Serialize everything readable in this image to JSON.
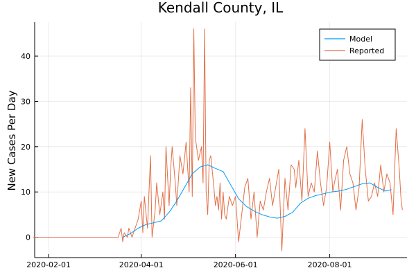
{
  "chart_data": {
    "type": "line",
    "title": "Kendall County, IL",
    "xlabel": "",
    "ylabel": "New Cases Per Day",
    "x_axis_type": "date",
    "xlim": [
      "2020-01-23",
      "2020-09-20"
    ],
    "ylim": [
      -4.5,
      47.5
    ],
    "x_ticks": [
      "2020-02-01",
      "2020-04-01",
      "2020-06-01",
      "2020-08-01"
    ],
    "y_ticks": [
      0,
      10,
      20,
      30,
      40
    ],
    "grid": true,
    "legend_position": "top-right",
    "series": [
      {
        "name": "Model",
        "color": "#009AFA",
        "x": [
          "2020-03-20",
          "2020-03-25",
          "2020-03-30",
          "2020-04-04",
          "2020-04-09",
          "2020-04-14",
          "2020-04-19",
          "2020-04-24",
          "2020-04-29",
          "2020-05-04",
          "2020-05-09",
          "2020-05-14",
          "2020-05-19",
          "2020-05-24",
          "2020-05-29",
          "2020-06-03",
          "2020-06-08",
          "2020-06-13",
          "2020-06-18",
          "2020-06-23",
          "2020-06-28",
          "2020-07-03",
          "2020-07-08",
          "2020-07-13",
          "2020-07-18",
          "2020-07-23",
          "2020-07-28",
          "2020-08-02",
          "2020-08-07",
          "2020-08-12",
          "2020-08-17",
          "2020-08-22",
          "2020-08-27",
          "2020-09-01",
          "2020-09-06",
          "2020-09-10"
        ],
        "y": [
          0,
          0.8,
          2.0,
          2.8,
          3.2,
          3.6,
          5.5,
          8.0,
          11,
          14,
          15.5,
          16.0,
          15.2,
          14.5,
          11.5,
          8.5,
          6.8,
          5.8,
          5.0,
          4.5,
          4.2,
          4.6,
          5.5,
          7.5,
          8.6,
          9.2,
          9.6,
          10.0,
          10.2,
          10.6,
          11.2,
          11.8,
          12.0,
          11.0,
          10.2,
          10.5
        ]
      },
      {
        "name": "Reported",
        "color": "#E26F46",
        "x": [
          "2020-01-22",
          "2020-03-17",
          "2020-03-19",
          "2020-03-20",
          "2020-03-21",
          "2020-03-23",
          "2020-03-24",
          "2020-03-26",
          "2020-03-27",
          "2020-03-29",
          "2020-03-30",
          "2020-04-01",
          "2020-04-02",
          "2020-04-03",
          "2020-04-05",
          "2020-04-06",
          "2020-04-07",
          "2020-04-08",
          "2020-04-10",
          "2020-04-11",
          "2020-04-13",
          "2020-04-15",
          "2020-04-16",
          "2020-04-17",
          "2020-04-19",
          "2020-04-20",
          "2020-04-21",
          "2020-04-23",
          "2020-04-24",
          "2020-04-26",
          "2020-04-28",
          "2020-04-30",
          "2020-05-02",
          "2020-05-03",
          "2020-05-04",
          "2020-05-05",
          "2020-05-06",
          "2020-05-08",
          "2020-05-10",
          "2020-05-11",
          "2020-05-12",
          "2020-05-13",
          "2020-05-14",
          "2020-05-15",
          "2020-05-16",
          "2020-05-18",
          "2020-05-19",
          "2020-05-20",
          "2020-05-21",
          "2020-05-22",
          "2020-05-23",
          "2020-05-24",
          "2020-05-25",
          "2020-05-26",
          "2020-05-28",
          "2020-05-30",
          "2020-06-01",
          "2020-06-03",
          "2020-06-05",
          "2020-06-07",
          "2020-06-09",
          "2020-06-11",
          "2020-06-13",
          "2020-06-15",
          "2020-06-17",
          "2020-06-19",
          "2020-06-21",
          "2020-06-23",
          "2020-06-25",
          "2020-06-27",
          "2020-06-29",
          "2020-07-01",
          "2020-07-03",
          "2020-07-05",
          "2020-07-07",
          "2020-07-09",
          "2020-07-10",
          "2020-07-12",
          "2020-07-14",
          "2020-07-16",
          "2020-07-18",
          "2020-07-20",
          "2020-07-22",
          "2020-07-24",
          "2020-07-26",
          "2020-07-28",
          "2020-07-30",
          "2020-08-01",
          "2020-08-03",
          "2020-08-04",
          "2020-08-06",
          "2020-08-08",
          "2020-08-10",
          "2020-08-12",
          "2020-08-14",
          "2020-08-16",
          "2020-08-18",
          "2020-08-20",
          "2020-08-22",
          "2020-08-24",
          "2020-08-26",
          "2020-08-28",
          "2020-08-30",
          "2020-09-01",
          "2020-09-03",
          "2020-09-05",
          "2020-09-07",
          "2020-09-09",
          "2020-09-11",
          "2020-09-13",
          "2020-09-15",
          "2020-09-16",
          "2020-09-17"
        ],
        "y": [
          0,
          0,
          2,
          -1,
          1,
          0,
          2,
          0,
          1,
          3,
          4,
          8,
          1,
          9,
          2,
          10,
          18,
          0,
          6,
          12,
          5,
          10,
          4,
          20,
          7,
          15,
          20,
          12,
          7,
          18,
          14,
          21,
          10,
          33,
          9,
          46,
          22,
          17,
          20,
          12,
          46,
          10,
          5,
          17,
          18,
          11,
          7,
          9,
          6,
          12,
          4,
          10,
          5,
          4,
          9,
          7,
          9,
          -1,
          5,
          11,
          13,
          4,
          10,
          0,
          8,
          6,
          10,
          13,
          7,
          11,
          15,
          -3,
          13,
          6,
          16,
          15,
          11,
          17,
          8,
          24,
          9,
          12,
          10,
          19,
          12,
          7,
          11,
          21,
          10,
          12,
          15,
          6,
          17,
          20,
          14,
          12,
          6,
          11,
          26,
          15,
          8,
          9,
          12,
          9,
          16,
          10,
          14,
          12,
          5,
          24,
          15,
          9,
          6
        ]
      }
    ]
  }
}
